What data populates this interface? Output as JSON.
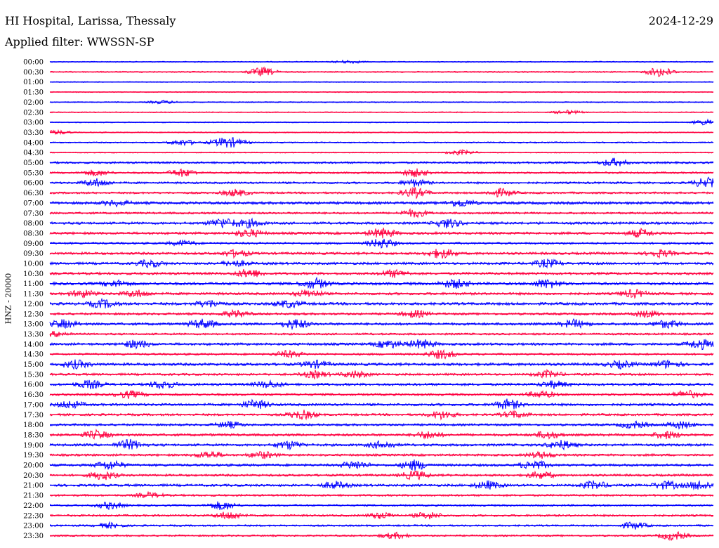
{
  "header": {
    "station": "HI Hospital, Larissa, Thessaly",
    "date": "2024-12-29",
    "filter_label": "Applied filter: WWSSN-SP"
  },
  "y_label": "HNZ - 20000",
  "chart_data": {
    "type": "line",
    "title": "HI Hospital, Larissa, Thessaly",
    "date": "2024-12-29",
    "filter": "WWSSN-SP",
    "ylabel": "HNZ - 20000",
    "colors": [
      "#0000ff",
      "#ff0040"
    ],
    "rows": [
      {
        "label": "00:00",
        "activity": 0.05,
        "bursts": [
          [
            0.45,
            0.3
          ]
        ]
      },
      {
        "label": "00:30",
        "activity": 0.1,
        "bursts": [
          [
            0.32,
            0.9
          ],
          [
            0.92,
            1.0
          ]
        ]
      },
      {
        "label": "01:00",
        "activity": 0.02,
        "bursts": []
      },
      {
        "label": "01:30",
        "activity": 0.02,
        "bursts": []
      },
      {
        "label": "02:00",
        "activity": 0.05,
        "bursts": [
          [
            0.17,
            0.3
          ]
        ]
      },
      {
        "label": "02:30",
        "activity": 0.04,
        "bursts": [
          [
            0.78,
            0.4
          ]
        ]
      },
      {
        "label": "03:00",
        "activity": 0.03,
        "bursts": [
          [
            0.99,
            0.6
          ]
        ]
      },
      {
        "label": "03:30",
        "activity": 0.05,
        "bursts": [
          [
            0.01,
            0.4
          ]
        ]
      },
      {
        "label": "04:00",
        "activity": 0.1,
        "bursts": [
          [
            0.2,
            0.6
          ],
          [
            0.26,
            0.8
          ],
          [
            0.28,
            0.6
          ]
        ]
      },
      {
        "label": "04:30",
        "activity": 0.05,
        "bursts": [
          [
            0.62,
            0.5
          ]
        ]
      },
      {
        "label": "05:00",
        "activity": 0.25,
        "bursts": [
          [
            0.85,
            0.8
          ]
        ]
      },
      {
        "label": "05:30",
        "activity": 0.2,
        "bursts": [
          [
            0.07,
            0.6
          ],
          [
            0.2,
            0.8
          ],
          [
            0.55,
            0.8
          ]
        ]
      },
      {
        "label": "06:00",
        "activity": 0.25,
        "bursts": [
          [
            0.07,
            0.8
          ],
          [
            0.55,
            0.7
          ],
          [
            0.99,
            1.0
          ]
        ]
      },
      {
        "label": "06:30",
        "activity": 0.25,
        "bursts": [
          [
            0.28,
            0.7
          ],
          [
            0.55,
            1.0
          ],
          [
            0.68,
            0.8
          ]
        ]
      },
      {
        "label": "07:00",
        "activity": 0.4,
        "bursts": [
          [
            0.1,
            0.5
          ],
          [
            0.62,
            0.7
          ]
        ]
      },
      {
        "label": "07:30",
        "activity": 0.25,
        "bursts": [
          [
            0.55,
            0.8
          ]
        ]
      },
      {
        "label": "08:00",
        "activity": 0.35,
        "bursts": [
          [
            0.26,
            1.0
          ],
          [
            0.3,
            0.8
          ],
          [
            0.6,
            0.9
          ]
        ]
      },
      {
        "label": "08:30",
        "activity": 0.35,
        "bursts": [
          [
            0.3,
            0.8
          ],
          [
            0.5,
            1.0
          ],
          [
            0.89,
            0.8
          ]
        ]
      },
      {
        "label": "09:00",
        "activity": 0.25,
        "bursts": [
          [
            0.5,
            1.0
          ],
          [
            0.2,
            0.5
          ]
        ]
      },
      {
        "label": "09:30",
        "activity": 0.35,
        "bursts": [
          [
            0.28,
            0.7
          ],
          [
            0.59,
            1.0
          ],
          [
            0.92,
            0.7
          ]
        ]
      },
      {
        "label": "10:00",
        "activity": 0.35,
        "bursts": [
          [
            0.15,
            0.7
          ],
          [
            0.28,
            0.6
          ],
          [
            0.75,
            0.8
          ]
        ]
      },
      {
        "label": "10:30",
        "activity": 0.35,
        "bursts": [
          [
            0.3,
            0.9
          ],
          [
            0.52,
            0.7
          ]
        ]
      },
      {
        "label": "11:00",
        "activity": 0.4,
        "bursts": [
          [
            0.1,
            0.6
          ],
          [
            0.4,
            1.0
          ],
          [
            0.61,
            0.9
          ],
          [
            0.75,
            0.9
          ]
        ]
      },
      {
        "label": "11:30",
        "activity": 0.35,
        "bursts": [
          [
            0.05,
            0.7
          ],
          [
            0.13,
            0.7
          ],
          [
            0.39,
            0.8
          ],
          [
            0.88,
            0.8
          ]
        ]
      },
      {
        "label": "12:00",
        "activity": 0.4,
        "bursts": [
          [
            0.08,
            0.8
          ],
          [
            0.24,
            0.7
          ],
          [
            0.36,
            0.7
          ]
        ]
      },
      {
        "label": "12:30",
        "activity": 0.3,
        "bursts": [
          [
            0.28,
            0.7
          ],
          [
            0.55,
            0.7
          ],
          [
            0.9,
            0.7
          ]
        ]
      },
      {
        "label": "13:00",
        "activity": 0.35,
        "bursts": [
          [
            0.02,
            0.8
          ],
          [
            0.23,
            0.9
          ],
          [
            0.37,
            1.0
          ],
          [
            0.79,
            0.8
          ],
          [
            0.93,
            0.8
          ]
        ]
      },
      {
        "label": "13:30",
        "activity": 0.25,
        "bursts": [
          [
            0.01,
            0.5
          ]
        ]
      },
      {
        "label": "14:00",
        "activity": 0.35,
        "bursts": [
          [
            0.13,
            0.8
          ],
          [
            0.51,
            0.8
          ],
          [
            0.56,
            0.9
          ],
          [
            0.98,
            1.0
          ]
        ]
      },
      {
        "label": "14:30",
        "activity": 0.25,
        "bursts": [
          [
            0.36,
            0.7
          ],
          [
            0.59,
            0.9
          ]
        ]
      },
      {
        "label": "15:00",
        "activity": 0.4,
        "bursts": [
          [
            0.04,
            0.8
          ],
          [
            0.4,
            0.7
          ],
          [
            0.86,
            0.7
          ],
          [
            0.93,
            0.7
          ]
        ]
      },
      {
        "label": "15:30",
        "activity": 0.3,
        "bursts": [
          [
            0.4,
            0.7
          ],
          [
            0.46,
            0.7
          ],
          [
            0.75,
            0.7
          ]
        ]
      },
      {
        "label": "16:00",
        "activity": 0.35,
        "bursts": [
          [
            0.06,
            0.8
          ],
          [
            0.17,
            0.8
          ],
          [
            0.33,
            0.7
          ],
          [
            0.76,
            0.7
          ]
        ]
      },
      {
        "label": "16:30",
        "activity": 0.3,
        "bursts": [
          [
            0.12,
            0.7
          ],
          [
            0.74,
            0.7
          ],
          [
            0.96,
            0.8
          ]
        ]
      },
      {
        "label": "17:00",
        "activity": 0.35,
        "bursts": [
          [
            0.03,
            0.7
          ],
          [
            0.31,
            0.9
          ],
          [
            0.69,
            1.0
          ]
        ]
      },
      {
        "label": "17:30",
        "activity": 0.3,
        "bursts": [
          [
            0.38,
            0.9
          ],
          [
            0.59,
            0.8
          ],
          [
            0.7,
            0.7
          ]
        ]
      },
      {
        "label": "18:00",
        "activity": 0.3,
        "bursts": [
          [
            0.27,
            0.6
          ],
          [
            0.88,
            0.7
          ],
          [
            0.95,
            0.7
          ]
        ]
      },
      {
        "label": "18:30",
        "activity": 0.35,
        "bursts": [
          [
            0.07,
            0.8
          ],
          [
            0.57,
            0.7
          ],
          [
            0.75,
            0.7
          ],
          [
            0.93,
            0.7
          ]
        ]
      },
      {
        "label": "19:00",
        "activity": 0.35,
        "bursts": [
          [
            0.12,
            1.0
          ],
          [
            0.36,
            0.8
          ],
          [
            0.5,
            0.7
          ],
          [
            0.77,
            0.9
          ]
        ]
      },
      {
        "label": "19:30",
        "activity": 0.3,
        "bursts": [
          [
            0.24,
            0.7
          ],
          [
            0.32,
            0.7
          ],
          [
            0.74,
            0.6
          ]
        ]
      },
      {
        "label": "20:00",
        "activity": 0.35,
        "bursts": [
          [
            0.09,
            0.9
          ],
          [
            0.46,
            0.8
          ],
          [
            0.55,
            1.0
          ],
          [
            0.73,
            0.9
          ]
        ]
      },
      {
        "label": "20:30",
        "activity": 0.3,
        "bursts": [
          [
            0.08,
            0.9
          ],
          [
            0.55,
            0.9
          ],
          [
            0.74,
            0.7
          ]
        ]
      },
      {
        "label": "21:00",
        "activity": 0.35,
        "bursts": [
          [
            0.43,
            0.7
          ],
          [
            0.66,
            0.8
          ],
          [
            0.82,
            0.8
          ],
          [
            0.93,
            0.8
          ],
          [
            0.98,
            0.9
          ]
        ]
      },
      {
        "label": "21:30",
        "activity": 0.25,
        "bursts": [
          [
            0.15,
            0.5
          ]
        ]
      },
      {
        "label": "22:00",
        "activity": 0.2,
        "bursts": [
          [
            0.09,
            0.7
          ],
          [
            0.26,
            0.9
          ]
        ]
      },
      {
        "label": "22:30",
        "activity": 0.25,
        "bursts": [
          [
            0.27,
            0.8
          ],
          [
            0.5,
            0.6
          ],
          [
            0.57,
            0.7
          ]
        ]
      },
      {
        "label": "23:00",
        "activity": 0.2,
        "bursts": [
          [
            0.09,
            0.5
          ],
          [
            0.88,
            0.7
          ]
        ]
      },
      {
        "label": "23:30",
        "activity": 0.2,
        "bursts": [
          [
            0.52,
            0.6
          ],
          [
            0.94,
            0.9
          ]
        ]
      }
    ]
  }
}
